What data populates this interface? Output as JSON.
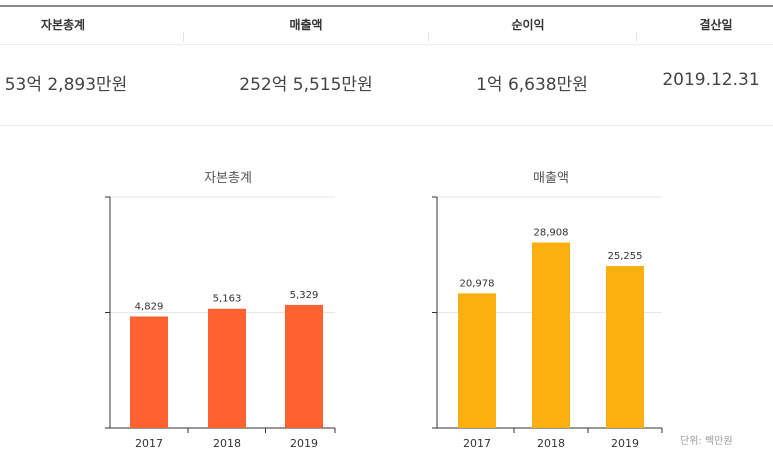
{
  "summary": {
    "headers": [
      "자본총계",
      "매출액",
      "순이익",
      "결산일"
    ],
    "values": [
      "53억 2,893만원",
      "252억 5,515만원",
      "1억 6,638만원",
      "2019.12.31"
    ]
  },
  "unit_label": "단위: 백만원",
  "colors": {
    "capital": "#ff6231",
    "revenue": "#fbb010"
  },
  "chart_data": [
    {
      "type": "bar",
      "title": "자본총계",
      "categories": [
        "2017",
        "2018",
        "2019"
      ],
      "values": [
        4829,
        5163,
        5329
      ],
      "value_labels": [
        "4,829",
        "5,163",
        "5,329"
      ],
      "ylim": [
        0,
        10000
      ],
      "grid": true,
      "xlabel": "",
      "ylabel": ""
    },
    {
      "type": "bar",
      "title": "매출액",
      "categories": [
        "2017",
        "2018",
        "2019"
      ],
      "values": [
        20978,
        28908,
        25255
      ],
      "value_labels": [
        "20,978",
        "28,908",
        "25,255"
      ],
      "ylim": [
        0,
        36000
      ],
      "grid": true,
      "xlabel": "",
      "ylabel": ""
    }
  ]
}
